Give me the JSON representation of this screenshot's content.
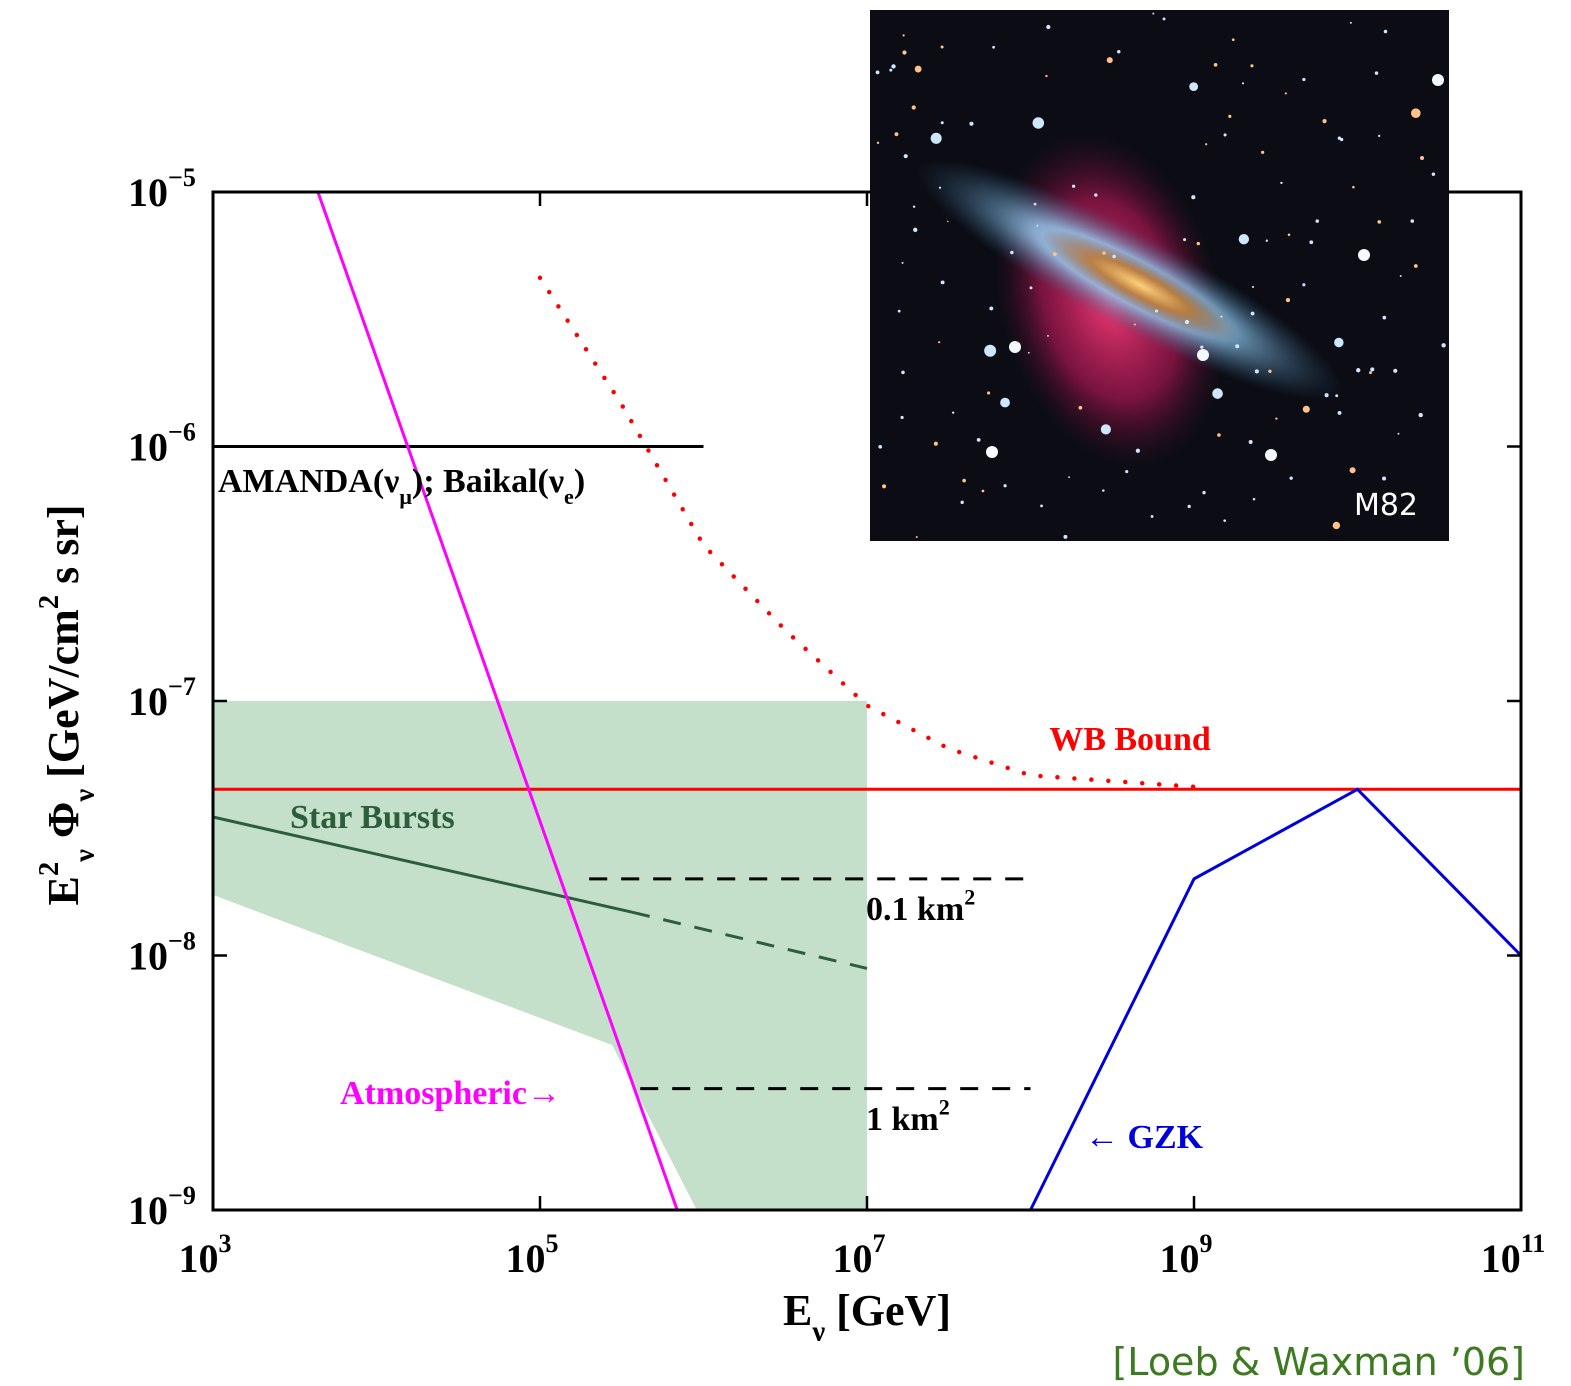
{
  "chart_data": {
    "type": "line",
    "x_label": [
      "E",
      {
        "sub": "ν"
      },
      " [GeV]"
    ],
    "y_label": [
      "E",
      {
        "sup": "2"
      },
      {
        "sub": "ν"
      },
      " Φ",
      {
        "sub": "ν"
      },
      "  [GeV/cm",
      {
        "sup": "2"
      },
      " s sr]"
    ],
    "log_x": true,
    "log_y": true,
    "xlim": [
      1000,
      100000000000
    ],
    "ylim": [
      1e-09,
      1e-05
    ],
    "xticks": [
      {
        "value": 1000,
        "label": "10",
        "sup": "3"
      },
      {
        "value": 100000,
        "label": "10",
        "sup": "5"
      },
      {
        "value": 10000000,
        "label": "10",
        "sup": "7"
      },
      {
        "value": 1000000000,
        "label": "10",
        "sup": "9"
      },
      {
        "value": 100000000000,
        "label": "10",
        "sup": "11"
      }
    ],
    "yticks": [
      {
        "value": 1e-09,
        "label": "10",
        "sup": "−9"
      },
      {
        "value": 1e-08,
        "label": "10",
        "sup": "−8"
      },
      {
        "value": 1e-07,
        "label": "10",
        "sup": "−7"
      },
      {
        "value": 1e-06,
        "label": "10",
        "sup": "−6"
      },
      {
        "value": 1e-05,
        "label": "10",
        "sup": "−5"
      }
    ],
    "series": [
      {
        "style": "area",
        "color": "#c4e0ca",
        "x": [
          1000,
          10000000,
          10000000,
          910000,
          276000,
          1000
        ],
        "values": [
          1e-07,
          1e-07,
          1e-09,
          1e-09,
          4.45e-09,
          1.73e-08
        ]
      },
      {
        "style": "line",
        "color": "#000000",
        "x": [
          1000,
          1000000
        ],
        "values": [
          1e-06,
          1e-06
        ]
      },
      {
        "style": "dashed",
        "color": "#000000",
        "x": [
          200000,
          100000000
        ],
        "values": [
          2e-08,
          2e-08
        ]
      },
      {
        "style": "dashed",
        "color": "#000000",
        "x": [
          410000,
          100000000
        ],
        "values": [
          3e-09,
          3e-09
        ]
      },
      {
        "style": "line",
        "color": "#2c5e3c",
        "x": [
          1000,
          366000
        ],
        "values": [
          3.5e-08,
          1.48e-08
        ]
      },
      {
        "style": "dashed",
        "color": "#2c5e3c",
        "x": [
          366000,
          10000000
        ],
        "values": [
          1.48e-08,
          8.9e-09
        ]
      },
      {
        "style": "dotted",
        "color": "#ff0000",
        "x": [
          100000,
          316000,
          1000000,
          3160000,
          10000000,
          31600000,
          100000000,
          1000000000
        ],
        "values": [
          4.6e-06,
          1.46e-06,
          4.1e-07,
          1.9e-07,
          9.6e-08,
          6.5e-08,
          5.1e-08,
          4.6e-08
        ]
      },
      {
        "style": "line",
        "color": "#ff0000",
        "x": [
          1000,
          100000000000
        ],
        "values": [
          4.5e-08,
          4.5e-08
        ]
      },
      {
        "style": "line",
        "color": "#ff00ff",
        "x": [
          4380,
          690000
        ],
        "values": [
          1e-05,
          1e-09
        ]
      },
      {
        "style": "line",
        "color": "#0000dd",
        "x": [
          100000000,
          1000000000,
          10000000000,
          100000000000
        ],
        "values": [
          1e-09,
          2e-08,
          4.5e-08,
          1e-08
        ]
      }
    ],
    "annotations": [
      {
        "parts": [
          "AMANDA(ν",
          {
            "sub": "μ"
          },
          "); Baikal(ν",
          {
            "sub": "e"
          },
          ")"
        ],
        "color": "#000000"
      },
      {
        "parts": [
          "0.1 km",
          {
            "sup": "2"
          }
        ],
        "color": "#000000"
      },
      {
        "parts": [
          "1 km",
          {
            "sup": "2"
          }
        ],
        "color": "#000000"
      },
      {
        "parts": [
          "Star Bursts"
        ],
        "color": "#2c5e3c"
      },
      {
        "parts": [
          "WB Bound"
        ],
        "color": "#ff0000"
      },
      {
        "parts": [
          "Atmospheric→"
        ],
        "color": "#ff00ff"
      },
      {
        "parts": [
          "← GZK"
        ],
        "color": "#0000dd"
      }
    ],
    "image_caption": "M82",
    "citation": "[Loeb & Waxman ’06]"
  }
}
